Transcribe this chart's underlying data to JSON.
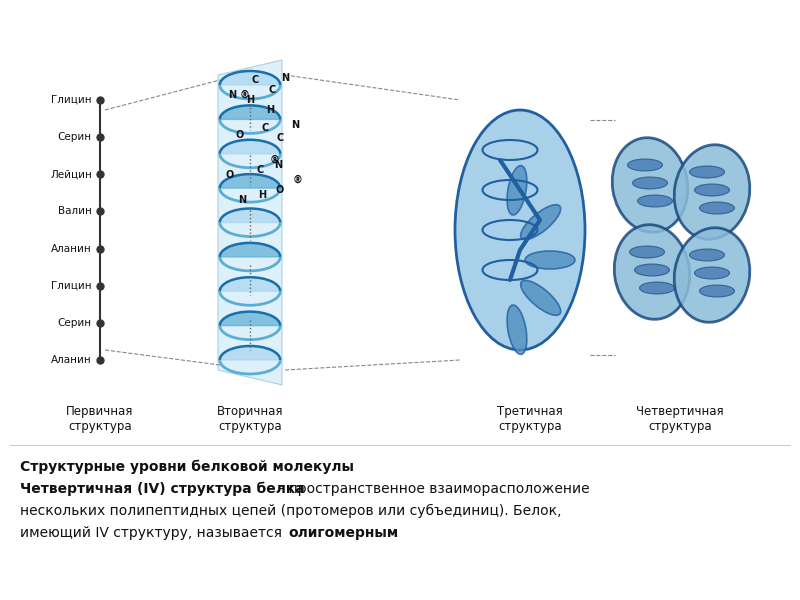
{
  "bg_color": "#ffffff",
  "fig_width": 8.0,
  "fig_height": 6.0,
  "dpi": 100,
  "title_line1": "Структурные уровни белковой молекулы",
  "title_line2_bold": "Четвертичная (IV) структура белка",
  "title_line2_normal": " - пространственное взаиморасположение",
  "title_line3": "нескольких полипептидных цепей (протомеров или субъединиц). Белок,",
  "title_line4_normal": "имеющий IV структуру, называется ",
  "title_line4_bold": "олигомерным",
  "label_primary": "Первичная\nструктура",
  "label_secondary": "Вторичная\nструктура",
  "label_tertiary": "Третичная\nструктура",
  "label_quaternary": "Четвертичная\nструктура",
  "amino_acids": [
    "Глицин",
    "Серин",
    "Лейцин",
    "Валин",
    "Аланин",
    "Глицин",
    "Серин",
    "Аланин"
  ],
  "helix_color_light": "#a8d4f0",
  "helix_color_mid": "#5aaed4",
  "helix_color_dark": "#1a6fa8",
  "helix_color_ribbon": "#cce8f8",
  "tertiary_color_light": "#a8d0e8",
  "tertiary_color_dark": "#2060a0",
  "quaternary_color_light": "#8bbcd8",
  "quaternary_color_dark": "#1a4a80",
  "chain_color": "#333333",
  "dot_line_color": "#555555",
  "text_color": "#111111",
  "atom_label_color": "#111111"
}
